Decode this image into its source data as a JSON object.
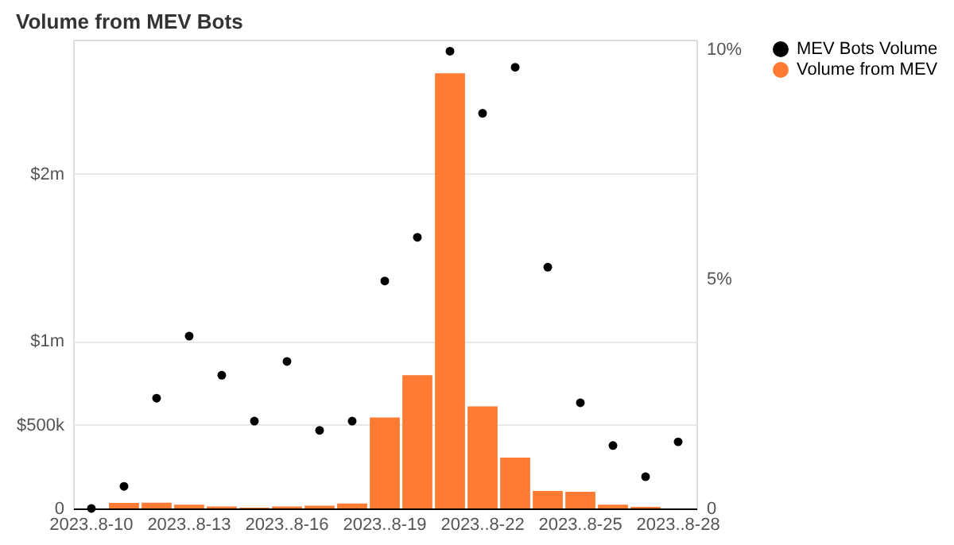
{
  "chart_data": {
    "type": "bar",
    "title": "Volume from MEV Bots",
    "categories": [
      "2023..8-10",
      null,
      null,
      "2023..8-13",
      null,
      null,
      "2023..8-16",
      null,
      null,
      "2023..8-19",
      null,
      null,
      "2023..8-22",
      null,
      null,
      "2023..8-25",
      null,
      null,
      "2023..8-28"
    ],
    "series": [
      {
        "name": "MEV Bots Volume",
        "type": "scatter",
        "axis": "y2",
        "color": "#000000",
        "values": [
          0.0,
          0.48,
          2.4,
          3.75,
          2.9,
          1.9,
          3.2,
          1.7,
          1.9,
          4.95,
          5.9,
          9.95,
          8.6,
          9.6,
          5.25,
          2.3,
          1.37,
          0.69,
          1.45
        ]
      },
      {
        "name": "Volume from MEV",
        "color": "#ff7b34",
        "values": [
          null,
          33000,
          35000,
          22000,
          12000,
          5000,
          12000,
          17000,
          30000,
          543000,
          796000,
          2600000,
          610000,
          304000,
          104000,
          100000,
          22000,
          9000,
          null
        ]
      }
    ],
    "ylim": [
      0,
      2800000
    ],
    "yticks": [
      {
        "value": 0,
        "label": "0"
      },
      {
        "value": 500000,
        "label": "$500k"
      },
      {
        "value": 1000000,
        "label": "$1m"
      },
      {
        "value": 2000000,
        "label": "$2m"
      }
    ],
    "y2lim": [
      0,
      10.2
    ],
    "y2ticks": [
      {
        "value": 0,
        "label": "0"
      },
      {
        "value": 5,
        "label": "5%"
      },
      {
        "value": 10,
        "label": "10%"
      }
    ],
    "grid": "y",
    "legend": "right",
    "marker": "circle"
  }
}
